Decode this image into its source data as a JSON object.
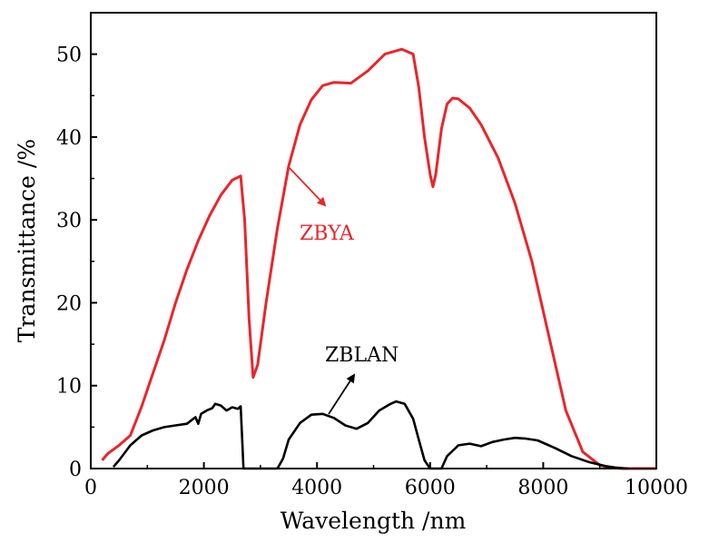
{
  "chart_data": {
    "type": "line",
    "title": "",
    "xlabel": "Wavelength /nm",
    "ylabel": "Transmittance /%",
    "xlim": [
      0,
      10000
    ],
    "ylim": [
      0,
      55
    ],
    "xticks": [
      0,
      2000,
      4000,
      6000,
      8000,
      10000
    ],
    "yticks": [
      0,
      10,
      20,
      30,
      40,
      50
    ],
    "grid": false,
    "legend": "none (series labelled by annotations with arrows)",
    "series": [
      {
        "name": "ZBYA",
        "color": "#e8262b",
        "x": [
          200,
          300,
          500,
          700,
          900,
          1100,
          1300,
          1500,
          1700,
          1900,
          2100,
          2300,
          2500,
          2650,
          2720,
          2800,
          2870,
          2950,
          3100,
          3300,
          3500,
          3700,
          3900,
          4100,
          4300,
          4600,
          4900,
          5200,
          5500,
          5700,
          5800,
          5900,
          6000,
          6050,
          6100,
          6200,
          6300,
          6400,
          6500,
          6700,
          6900,
          7200,
          7500,
          7800,
          8100,
          8400,
          8700,
          9000,
          9200,
          9400,
          9600,
          9800,
          10000
        ],
        "y": [
          1.0,
          1.8,
          2.8,
          4.0,
          7.5,
          11.5,
          15.5,
          20.0,
          24.0,
          27.5,
          30.5,
          33.0,
          34.8,
          35.3,
          30.0,
          18.0,
          11.0,
          12.5,
          20.0,
          29.0,
          36.5,
          41.5,
          44.5,
          46.2,
          46.6,
          46.5,
          48.0,
          50.0,
          50.6,
          50.0,
          46.0,
          40.0,
          35.5,
          34.0,
          35.5,
          41.0,
          44.0,
          44.7,
          44.6,
          43.5,
          41.5,
          37.5,
          32.0,
          25.0,
          16.0,
          7.0,
          2.0,
          0.4,
          0.1,
          0.0,
          0.0,
          0.0,
          0.0
        ]
      },
      {
        "name": "ZBLAN",
        "color": "#000000",
        "x": [
          400,
          500,
          700,
          900,
          1100,
          1300,
          1500,
          1700,
          1850,
          1900,
          1950,
          2050,
          2150,
          2200,
          2300,
          2400,
          2500,
          2600,
          2650,
          2680,
          2700,
          3300,
          3400,
          3500,
          3700,
          3900,
          4100,
          4300,
          4500,
          4700,
          4900,
          5100,
          5300,
          5400,
          5550,
          5700,
          5800,
          5900,
          6000,
          6100,
          6200,
          6300,
          6500,
          6700,
          6900,
          7100,
          7300,
          7500,
          7700,
          7900,
          8200,
          8500,
          8800,
          9100,
          9300,
          9500
        ],
        "y": [
          0.2,
          1.0,
          2.8,
          4.0,
          4.6,
          5.0,
          5.2,
          5.4,
          6.2,
          5.4,
          6.6,
          7.0,
          7.3,
          7.8,
          7.6,
          7.0,
          7.4,
          7.2,
          7.5,
          3.0,
          0.0,
          0.0,
          1.2,
          3.5,
          5.5,
          6.5,
          6.6,
          6.1,
          5.2,
          4.8,
          5.5,
          7.0,
          7.8,
          8.1,
          7.8,
          6.0,
          3.5,
          1.0,
          0.0,
          0.0,
          0.0,
          1.5,
          2.8,
          3.0,
          2.7,
          3.2,
          3.5,
          3.7,
          3.6,
          3.4,
          2.5,
          1.5,
          0.8,
          0.3,
          0.1,
          0.0
        ]
      }
    ],
    "annotations": [
      {
        "text": "ZBYA",
        "series": "ZBYA",
        "color": "#e8262b"
      },
      {
        "text": "ZBLAN",
        "series": "ZBLAN",
        "color": "#000000"
      }
    ]
  }
}
